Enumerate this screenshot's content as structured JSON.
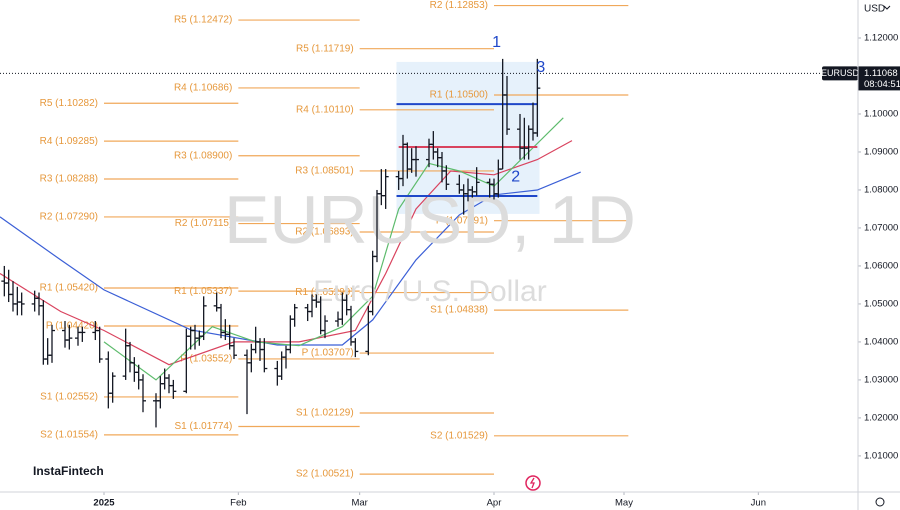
{
  "chart_data": {
    "type": "ohlc",
    "watermark_symbol": "EURUSD, 1D",
    "watermark_description": "Euro / U.S. Dollar",
    "brand": "InstaFintech",
    "currency": "USD",
    "symbol": "EURUSD",
    "last_price": 1.11068,
    "countdown": "08:04:51",
    "bar_color": "#131722",
    "grid": false,
    "xlim": [
      -24,
      174
    ],
    "xticks": [
      {
        "value": 0,
        "label": "2025"
      },
      {
        "value": 31,
        "label": "Feb"
      },
      {
        "value": 59,
        "label": "Mar"
      },
      {
        "value": 90,
        "label": "Apr"
      },
      {
        "value": 120,
        "label": "May"
      },
      {
        "value": 151,
        "label": "Jun"
      }
    ],
    "ylim": [
      1.0005,
      1.13
    ],
    "yticks": [
      {
        "value": 1.01,
        "label": "1.01000"
      },
      {
        "value": 1.02,
        "label": "1.02000"
      },
      {
        "value": 1.03,
        "label": "1.03000"
      },
      {
        "value": 1.04,
        "label": "1.04000"
      },
      {
        "value": 1.05,
        "label": "1.05000"
      },
      {
        "value": 1.06,
        "label": "1.06000"
      },
      {
        "value": 1.07,
        "label": "1.07000"
      },
      {
        "value": 1.08,
        "label": "1.08000"
      },
      {
        "value": 1.09,
        "label": "1.09000"
      },
      {
        "value": 1.1,
        "label": "1.10000"
      },
      {
        "value": 1.11,
        "label": "1.11000"
      },
      {
        "value": 1.12,
        "label": "1.12000"
      }
    ],
    "x": [
      -23,
      -22,
      -21,
      -20,
      -19,
      -16,
      -15,
      -14,
      -13,
      -12,
      -9,
      -8,
      -6,
      -5,
      -2,
      -1,
      1,
      2,
      5,
      6,
      7,
      8,
      9,
      12,
      13,
      14,
      15,
      16,
      19,
      20,
      21,
      22,
      23,
      26,
      27,
      28,
      29,
      30,
      33,
      34,
      35,
      36,
      37,
      40,
      41,
      42,
      43,
      44,
      47,
      48,
      49,
      50,
      51,
      54,
      55,
      56,
      57,
      58,
      61,
      62,
      63,
      64,
      65,
      68,
      69,
      70,
      71,
      72,
      75,
      76,
      77,
      78,
      79,
      82,
      83,
      84,
      85,
      86,
      89,
      90,
      91,
      92,
      93,
      96,
      97,
      98,
      99,
      100
    ],
    "ohlc": [
      [
        1.056,
        1.06,
        1.052,
        1.0555
      ],
      [
        1.0555,
        1.059,
        1.0505,
        1.0525
      ],
      [
        1.0525,
        1.056,
        1.048,
        1.05
      ],
      [
        1.05,
        1.0545,
        1.047,
        1.0505
      ],
      [
        1.0505,
        1.053,
        1.047,
        1.05
      ],
      [
        1.05,
        1.0535,
        1.048,
        1.0515
      ],
      [
        1.0515,
        1.053,
        1.047,
        1.0495
      ],
      [
        1.0495,
        1.051,
        1.034,
        1.0355
      ],
      [
        1.0355,
        1.041,
        1.034,
        1.0365
      ],
      [
        1.0365,
        1.0445,
        1.0345,
        1.043
      ],
      [
        1.043,
        1.0455,
        1.0385,
        1.0405
      ],
      [
        1.0405,
        1.0445,
        1.038,
        1.041
      ],
      [
        1.041,
        1.044,
        1.039,
        1.0425
      ],
      [
        1.0425,
        1.044,
        1.04,
        1.0425
      ],
      [
        1.0425,
        1.0455,
        1.0405,
        1.043
      ],
      [
        1.043,
        1.044,
        1.0345,
        1.0355
      ],
      [
        1.0355,
        1.0375,
        1.0225,
        1.0265
      ],
      [
        1.0265,
        1.032,
        1.024,
        1.031
      ],
      [
        1.031,
        1.0435,
        1.03,
        1.039
      ],
      [
        1.039,
        1.04,
        1.032,
        1.0345
      ],
      [
        1.0345,
        1.036,
        1.0295,
        1.032
      ],
      [
        1.032,
        1.034,
        1.0275,
        1.03
      ],
      [
        1.03,
        1.0315,
        1.0215,
        1.0245
      ],
      [
        1.0245,
        1.0265,
        1.0175,
        1.0245
      ],
      [
        1.0245,
        1.031,
        1.0225,
        1.029
      ],
      [
        1.029,
        1.033,
        1.0275,
        1.0305
      ],
      [
        1.0305,
        1.0315,
        1.0265,
        1.0285
      ],
      [
        1.0285,
        1.03,
        1.025,
        1.027
      ],
      [
        1.027,
        1.0435,
        1.0265,
        1.0415
      ],
      [
        1.0415,
        1.044,
        1.038,
        1.043
      ],
      [
        1.043,
        1.0445,
        1.038,
        1.041
      ],
      [
        1.041,
        1.043,
        1.039,
        1.0415
      ],
      [
        1.0415,
        1.052,
        1.0405,
        1.0495
      ],
      [
        1.0495,
        1.053,
        1.048,
        1.049
      ],
      [
        1.049,
        1.05,
        1.041,
        1.0425
      ],
      [
        1.0425,
        1.046,
        1.0405,
        1.042
      ],
      [
        1.042,
        1.0445,
        1.038,
        1.039
      ],
      [
        1.039,
        1.041,
        1.0355,
        1.0365
      ],
      [
        1.0365,
        1.038,
        1.021,
        1.0345
      ],
      [
        1.0345,
        1.0395,
        1.032,
        1.038
      ],
      [
        1.038,
        1.044,
        1.037,
        1.04
      ],
      [
        1.04,
        1.041,
        1.035,
        1.038
      ],
      [
        1.038,
        1.041,
        1.032,
        1.033
      ],
      [
        1.033,
        1.035,
        1.0285,
        1.031
      ],
      [
        1.031,
        1.0375,
        1.03,
        1.036
      ],
      [
        1.036,
        1.039,
        1.033,
        1.038
      ],
      [
        1.038,
        1.047,
        1.037,
        1.046
      ],
      [
        1.046,
        1.05,
        1.044,
        1.049
      ],
      [
        1.049,
        1.05,
        1.0455,
        1.048
      ],
      [
        1.048,
        1.0525,
        1.0465,
        1.051
      ],
      [
        1.051,
        1.0525,
        1.049,
        1.0505
      ],
      [
        1.0505,
        1.052,
        1.042,
        1.043
      ],
      [
        1.043,
        1.047,
        1.041,
        1.0455
      ],
      [
        1.0455,
        1.048,
        1.044,
        1.046
      ],
      [
        1.046,
        1.053,
        1.0445,
        1.051
      ],
      [
        1.051,
        1.0525,
        1.047,
        1.0485
      ],
      [
        1.0485,
        1.0495,
        1.039,
        1.04
      ],
      [
        1.04,
        1.041,
        1.036,
        1.0375
      ],
      [
        1.0375,
        1.0495,
        1.0365,
        1.048
      ],
      [
        1.048,
        1.064,
        1.047,
        1.0625
      ],
      [
        1.0625,
        1.08,
        1.061,
        1.079
      ],
      [
        1.079,
        1.0855,
        1.076,
        1.0785
      ],
      [
        1.0785,
        1.0855,
        1.075,
        1.0835
      ],
      [
        1.0835,
        1.085,
        1.08,
        1.083
      ],
      [
        1.083,
        1.0945,
        1.081,
        1.092
      ],
      [
        1.092,
        1.0925,
        1.083,
        1.0855
      ],
      [
        1.0855,
        1.091,
        1.0845,
        1.088
      ],
      [
        1.088,
        1.0915,
        1.0835,
        1.088
      ],
      [
        1.088,
        1.0935,
        1.086,
        1.092
      ],
      [
        1.092,
        1.0955,
        1.088,
        1.09
      ],
      [
        1.09,
        1.091,
        1.086,
        1.0885
      ],
      [
        1.0885,
        1.09,
        1.082,
        1.085
      ],
      [
        1.085,
        1.0865,
        1.08,
        1.0815
      ],
      [
        1.0815,
        1.084,
        1.079,
        1.08
      ],
      [
        1.08,
        1.0815,
        1.0735,
        1.079
      ],
      [
        1.079,
        1.083,
        1.077,
        1.08
      ],
      [
        1.08,
        1.081,
        1.078,
        1.0795
      ],
      [
        1.0795,
        1.086,
        1.0785,
        1.082
      ],
      [
        1.082,
        1.083,
        1.078,
        1.0815
      ],
      [
        1.0815,
        1.083,
        1.0775,
        1.079
      ],
      [
        1.079,
        1.088,
        1.078,
        1.0855
      ],
      [
        1.0855,
        1.1145,
        1.0855,
        1.105
      ],
      [
        1.105,
        1.11,
        1.0945,
        1.096
      ],
      [
        1.096,
        1.1,
        1.088,
        1.091
      ],
      [
        1.091,
        1.099,
        1.088,
        1.091
      ],
      [
        1.091,
        1.097,
        1.088,
        1.096
      ],
      [
        1.096,
        1.103,
        1.093,
        1.095
      ],
      [
        1.095,
        1.1145,
        1.094,
        1.1068
      ]
    ],
    "moving_averages": [
      {
        "color": "#3b5fd6",
        "x": [
          -24,
          -10,
          0,
          20,
          40,
          55,
          62,
          72,
          82,
          90,
          100,
          110
        ],
        "values": [
          1.0729,
          1.0616,
          1.0537,
          1.0432,
          1.0392,
          1.0392,
          1.0458,
          1.0616,
          1.0734,
          1.0787,
          1.08,
          1.0847
        ]
      },
      {
        "color": "#d9435e",
        "x": [
          -24,
          -10,
          0,
          15,
          30,
          45,
          58,
          65,
          72,
          80,
          90,
          100,
          108
        ],
        "values": [
          1.058,
          1.048,
          1.043,
          1.034,
          1.04,
          1.04,
          1.043,
          1.058,
          1.075,
          1.085,
          1.084,
          1.088,
          1.093
        ]
      },
      {
        "color": "#5dbb6c",
        "x": [
          0,
          12,
          25,
          35,
          45,
          55,
          62,
          68,
          75,
          82,
          90,
          98,
          106
        ],
        "values": [
          1.04,
          1.03,
          1.044,
          1.04,
          1.039,
          1.044,
          1.052,
          1.075,
          1.087,
          1.085,
          1.081,
          1.09,
          1.099
        ]
      }
    ],
    "pivot_color": "#f0a85a",
    "pivot_text_color": "#e6983c",
    "pivots": [
      {
        "from": 0,
        "to": 31,
        "levels": [
          {
            "label": "R5 (1.10282)",
            "value": 1.10282
          },
          {
            "label": "R4 (1.09285)",
            "value": 1.09285
          },
          {
            "label": "R3 (1.08288)",
            "value": 1.08288
          },
          {
            "label": "R2 (1.07290)",
            "value": 1.0729
          },
          {
            "label": "R1 (1.05420)",
            "value": 1.0542
          },
          {
            "label": "P (1.04420)",
            "value": 1.0442
          },
          {
            "label": "S1 (1.02552)",
            "value": 1.02552
          },
          {
            "label": "S2 (1.01554)",
            "value": 1.01554
          }
        ]
      },
      {
        "from": 31,
        "to": 59,
        "levels": [
          {
            "label": "R5 (1.12472)",
            "value": 1.12472
          },
          {
            "label": "R4 (1.10686)",
            "value": 1.10686
          },
          {
            "label": "R3 (1.08900)",
            "value": 1.089
          },
          {
            "label": "R2 (1.07115)",
            "value": 1.07115
          },
          {
            "label": "R1 (1.05337)",
            "value": 1.05337
          },
          {
            "label": "P (1.03552)",
            "value": 1.03552
          },
          {
            "label": "S1 (1.01774)",
            "value": 1.01774
          }
        ]
      },
      {
        "from": 59,
        "to": 90,
        "levels": [
          {
            "label": "R5 (1.11719)",
            "value": 1.11719
          },
          {
            "label": "R4 (1.10110)",
            "value": 1.1011
          },
          {
            "label": "R3 (1.08501)",
            "value": 1.08501
          },
          {
            "label": "R2 (1.06893)",
            "value": 1.06893
          },
          {
            "label": "R1 (1.05299)",
            "value": 1.05299
          },
          {
            "label": "P (1.03707)",
            "value": 1.03707
          },
          {
            "label": "S1 (1.02129)",
            "value": 1.02129
          },
          {
            "label": "S2 (1.00521)",
            "value": 1.00521
          }
        ]
      },
      {
        "from": 90,
        "to": 121,
        "levels": [
          {
            "label": "R2 (1.12853)",
            "value": 1.12853
          },
          {
            "label": "R1 (1.10500)",
            "value": 1.105
          },
          {
            "label": "P (1.07191)",
            "value": 1.07191
          },
          {
            "label": "S1 (1.04838)",
            "value": 1.04838
          },
          {
            "label": "S2 (1.01529)",
            "value": 1.01529
          }
        ]
      }
    ],
    "profile_box": {
      "x": [
        67.5,
        100.5
      ],
      "y": [
        1.0737,
        1.1137
      ],
      "color": "#dcebfa"
    },
    "levels": [
      {
        "from": 67.5,
        "to": 100,
        "value": 1.1026,
        "color": "#1f47c9"
      },
      {
        "from": 67.5,
        "to": 100,
        "value": 1.0784,
        "color": "#1f47c9"
      },
      {
        "from": 68,
        "to": 100,
        "value": 1.0913,
        "color": "#d9435e"
      }
    ],
    "annotations": [
      {
        "text": "1",
        "x": 90.6,
        "y": 1.1187
      },
      {
        "text": "2",
        "x": 95,
        "y": 1.0834
      },
      {
        "text": "3",
        "x": 100.8,
        "y": 1.1121
      }
    ]
  }
}
